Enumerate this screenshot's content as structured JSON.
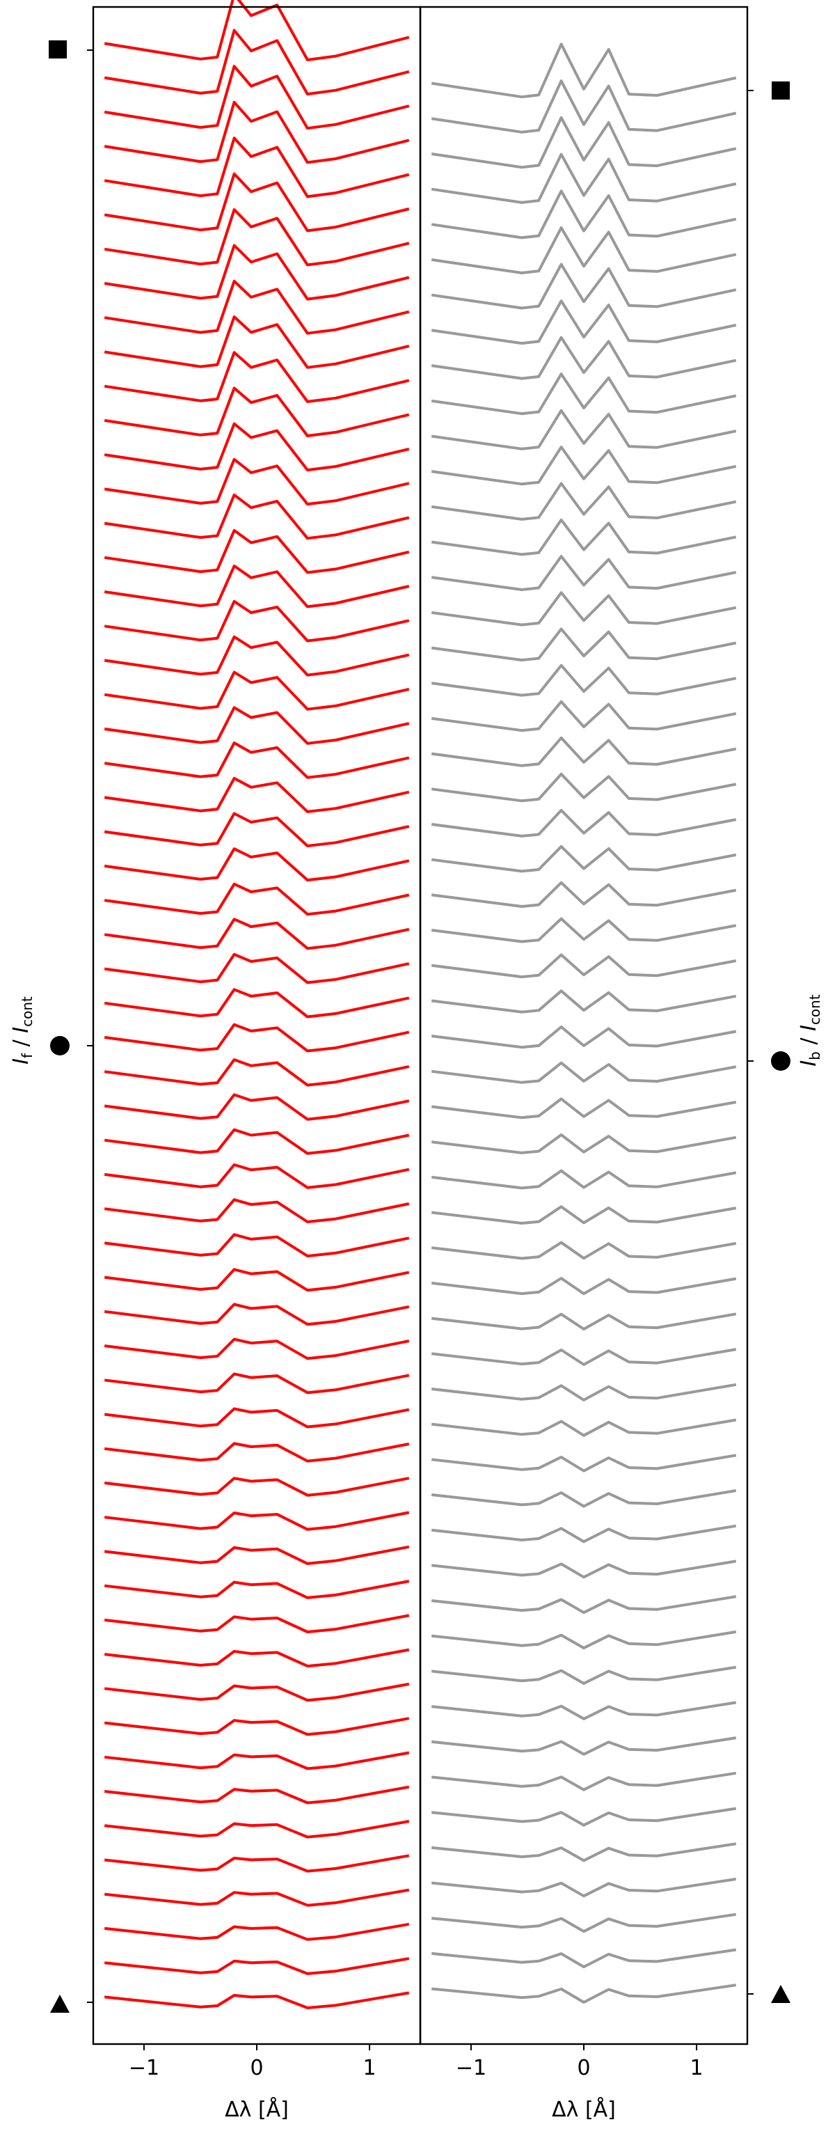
{
  "chart_data": [
    {
      "type": "line",
      "panel": "left",
      "color": "#ff0000",
      "xlim": [
        -1.45,
        1.45
      ],
      "xticks": [
        -1,
        0,
        1
      ],
      "xtick_labels": [
        "−1",
        "0",
        "1"
      ],
      "xlabel": "Δλ [Å]",
      "ylabel": "I_f / I_cont",
      "y_markers": [
        {
          "marker": "square",
          "shape": "square"
        },
        {
          "marker": "circle",
          "shape": "circle"
        },
        {
          "marker": "triangle",
          "shape": "triangle"
        }
      ],
      "profile_count": 58,
      "x": [
        -1.35,
        -0.45,
        -0.3,
        -0.15,
        0.0,
        0.2,
        0.45,
        1.35
      ]
    },
    {
      "type": "line",
      "panel": "right",
      "color": "#999999",
      "xlim": [
        -1.45,
        1.45
      ],
      "xticks": [
        -1,
        0,
        1
      ],
      "xtick_labels": [
        "−1",
        "0",
        "1"
      ],
      "xlabel": "Δλ [Å]",
      "ylabel": "I_b / I_cont",
      "y_markers": [
        {
          "marker": "square",
          "shape": "square"
        },
        {
          "marker": "circle",
          "shape": "circle"
        },
        {
          "marker": "triangle",
          "shape": "triangle"
        }
      ],
      "profile_count": 55,
      "x": [
        -1.35,
        -0.6,
        -0.3,
        -0.15,
        0.0,
        0.25,
        0.6,
        1.35
      ]
    }
  ]
}
